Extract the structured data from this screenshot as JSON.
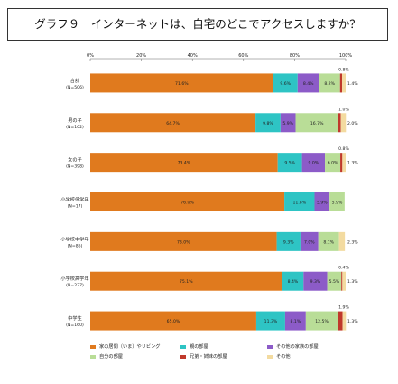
{
  "title": "グラフ９　インターネットは、自宅のどこでアクセスしますか？",
  "chart_data": {
    "type": "bar",
    "stacked": true,
    "orientation": "horizontal",
    "xlim": [
      0,
      100
    ],
    "x_ticks": [
      "0%",
      "20%",
      "40%",
      "60%",
      "80%",
      "100%"
    ],
    "categories": [
      {
        "label": "合計",
        "sub": "(N=506)"
      },
      {
        "label": "男の子",
        "sub": "(N=102)"
      },
      {
        "label": "女の子",
        "sub": "(N=398)"
      },
      {
        "label": "小学校低学年",
        "sub": "(N=17)"
      },
      {
        "label": "小学校中学年",
        "sub": "(N=86)"
      },
      {
        "label": "小学校高学年",
        "sub": "(N=237)"
      },
      {
        "label": "中学生",
        "sub": "(N=160)"
      }
    ],
    "series": [
      {
        "name": "家の居間（いま）やリビング",
        "color": "#e07a1e",
        "values": [
          71.6,
          64.7,
          73.4,
          76.0,
          73.0,
          75.1,
          65.0
        ],
        "labels": [
          "71.6%",
          "64.7%",
          "73.4%",
          "76.0%",
          "73.0%",
          "75.1%",
          "65.0%"
        ]
      },
      {
        "name": "親の部屋",
        "color": "#2ec4c4",
        "values": [
          9.6,
          9.8,
          9.5,
          11.8,
          9.3,
          8.4,
          11.3
        ],
        "labels": [
          "9.6%",
          "9.8%",
          "9.5%",
          "11.8%",
          "9.3%",
          "8.4%",
          "11.3%"
        ]
      },
      {
        "name": "その他の家族の部屋",
        "color": "#8c5bc8",
        "values": [
          8.4,
          5.9,
          9.0,
          5.9,
          7.0,
          9.3,
          8.1
        ],
        "labels": [
          "8.4%",
          "5.9%",
          "9.0%",
          "5.9%",
          "7.0%",
          "9.3%",
          "8.1%"
        ]
      },
      {
        "name": "自分の部屋",
        "color": "#b9dd97",
        "values": [
          8.2,
          16.7,
          6.0,
          5.9,
          8.1,
          5.5,
          12.5
        ],
        "labels": [
          "8.2%",
          "16.7%",
          "6.0%",
          "5.9%",
          "8.1%",
          "5.5%",
          "12.5%"
        ]
      },
      {
        "name": "兄弟・姉妹の部屋",
        "color": "#c0392b",
        "values": [
          0.8,
          1.0,
          0.8,
          0.0,
          0.0,
          0.4,
          1.9
        ],
        "labels": [
          "0.8%",
          "1.0%",
          "0.8%",
          "",
          "",
          "0.4%",
          "1.9%"
        ]
      },
      {
        "name": "その他",
        "color": "#f3dba0",
        "values": [
          1.4,
          2.0,
          1.3,
          0.0,
          2.3,
          1.3,
          1.3
        ],
        "labels": [
          "1.4%",
          "2.0%",
          "1.3%",
          "",
          "2.3%",
          "1.3%",
          "1.3%"
        ]
      }
    ]
  }
}
